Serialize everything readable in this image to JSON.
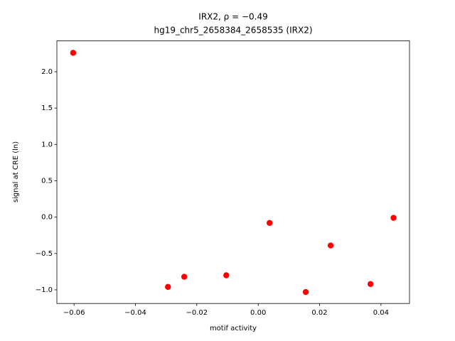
{
  "chart_data": {
    "type": "scatter",
    "title": "IRX2, ρ = −0.49",
    "subtitle": "hg19_chr5_2658384_2658535 (IRX2)",
    "x_label": "motif activity",
    "y_label": "signal at CRE (ln)",
    "color": "#ff0000",
    "x": [
      -0.0603,
      -0.0294,
      -0.0241,
      -0.0104,
      0.0037,
      0.0155,
      0.0236,
      0.0366,
      0.0441
    ],
    "values": [
      2.26,
      -0.96,
      -0.82,
      -0.8,
      -0.08,
      -1.03,
      -0.39,
      -0.92,
      -0.01
    ],
    "xlim": [
      -0.0656,
      0.0493
    ],
    "ylim": [
      -1.188,
      2.424
    ],
    "xticks": [
      {
        "value": -0.06,
        "label": "−0.06"
      },
      {
        "value": -0.04,
        "label": "−0.04"
      },
      {
        "value": -0.02,
        "label": "−0.02"
      },
      {
        "value": 0,
        "label": "0.00"
      },
      0.02,
      0.04
    ],
    "yticks": [
      {
        "value": -1,
        "label": "−1.0"
      },
      {
        "value": -0.5,
        "label": "−0.5"
      },
      {
        "value": 0,
        "label": "0.0"
      },
      0.5,
      {
        "value": 1,
        "label": "1.0"
      },
      1.5,
      {
        "value": 2,
        "label": "2.0"
      }
    ]
  }
}
